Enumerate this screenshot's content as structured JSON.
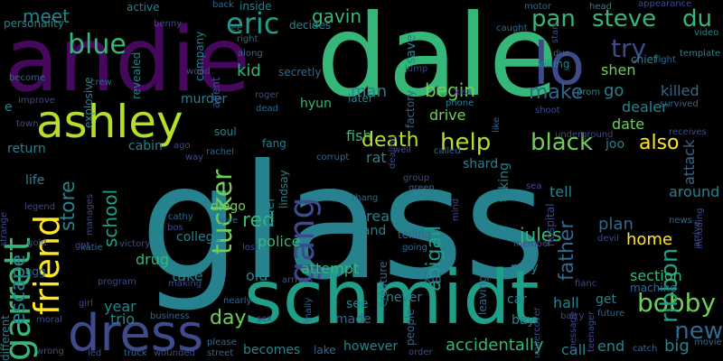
{
  "palette": {
    "purple": "#46085c",
    "indigo": "#3e4a89",
    "blue": "#31688e",
    "teal": "#26828e",
    "cyan": "#1f9e89",
    "green": "#35b779",
    "lime": "#6ece58",
    "yellow": "#b5de2b",
    "bright": "#fde725"
  },
  "words": [
    {
      "id": "glass",
      "text": "glass",
      "color": "teal"
    },
    {
      "id": "dale",
      "text": "dale",
      "color": "green"
    },
    {
      "id": "andie",
      "text": "andie",
      "color": "purple"
    },
    {
      "id": "schmidt",
      "text": "schmidt",
      "color": "cyan"
    },
    {
      "id": "ashley",
      "text": "ashley",
      "color": "yellow"
    },
    {
      "id": "dress",
      "text": "dress",
      "color": "indigo"
    },
    {
      "id": "garrett",
      "text": "garrett",
      "color": "green"
    },
    {
      "id": "friend",
      "text": "friend",
      "color": "bright"
    },
    {
      "id": "lo",
      "text": "lo",
      "color": "indigo"
    },
    {
      "id": "gang",
      "text": "gang",
      "color": "indigo"
    },
    {
      "id": "tucker",
      "text": "tucker",
      "color": "lime"
    },
    {
      "id": "eric",
      "text": "eric",
      "color": "cyan"
    },
    {
      "id": "blue",
      "text": "blue",
      "color": "green"
    },
    {
      "id": "death",
      "text": "death",
      "color": "yellow"
    },
    {
      "id": "help",
      "text": "help",
      "color": "yellow"
    },
    {
      "id": "black",
      "text": "black",
      "color": "lime"
    },
    {
      "id": "bobby",
      "text": "bobby",
      "color": "lime"
    },
    {
      "id": "steve",
      "text": "steve",
      "color": "green"
    },
    {
      "id": "du",
      "text": "du",
      "color": "green"
    },
    {
      "id": "ribbon",
      "text": "ribbon",
      "color": "cyan"
    },
    {
      "id": "try",
      "text": "try",
      "color": "indigo"
    },
    {
      "id": "pan",
      "text": "pan",
      "color": "green"
    },
    {
      "id": "make",
      "text": "make",
      "color": "blue"
    },
    {
      "id": "also",
      "text": "also",
      "color": "bright"
    },
    {
      "id": "new",
      "text": "new",
      "color": "blue"
    },
    {
      "id": "abigail",
      "text": "abigail",
      "color": "cyan"
    },
    {
      "id": "father",
      "text": "father",
      "color": "blue"
    },
    {
      "id": "escape",
      "text": "escape",
      "color": "teal"
    },
    {
      "id": "store",
      "text": "store",
      "color": "teal"
    },
    {
      "id": "school",
      "text": "school",
      "color": "cyan"
    },
    {
      "id": "day",
      "text": "day",
      "color": "lime"
    },
    {
      "id": "red",
      "text": "red",
      "color": "green"
    },
    {
      "id": "police",
      "text": "police",
      "color": "green"
    },
    {
      "id": "gavin",
      "text": "gavin",
      "color": "green"
    },
    {
      "id": "meet",
      "text": "meet",
      "color": "teal"
    },
    {
      "id": "begin",
      "text": "begin",
      "color": "lime"
    },
    {
      "id": "jules",
      "text": "jules",
      "color": "green"
    },
    {
      "id": "home",
      "text": "home",
      "color": "bright"
    },
    {
      "id": "accidentally",
      "text": "accidentally",
      "color": "green"
    },
    {
      "id": "section",
      "text": "section",
      "color": "green"
    },
    {
      "id": "kid",
      "text": "kid",
      "color": "green"
    },
    {
      "id": "drug",
      "text": "drug",
      "color": "green"
    },
    {
      "id": "attempt",
      "text": "attempt",
      "color": "green"
    },
    {
      "id": "killed",
      "text": "killed",
      "color": "blue"
    },
    {
      "id": "attack",
      "text": "attack",
      "color": "blue"
    },
    {
      "id": "plan",
      "text": "plan",
      "color": "blue"
    },
    {
      "id": "man",
      "text": "man",
      "color": "teal"
    },
    {
      "id": "drive",
      "text": "drive",
      "color": "lime"
    },
    {
      "id": "fish",
      "text": "fish",
      "color": "green"
    },
    {
      "id": "hyun",
      "text": "hyun",
      "color": "green"
    },
    {
      "id": "shen",
      "text": "shen",
      "color": "lime"
    },
    {
      "id": "go",
      "text": "go",
      "color": "teal"
    },
    {
      "id": "dealer",
      "text": "dealer",
      "color": "teal"
    },
    {
      "id": "date",
      "text": "date",
      "color": "lime"
    },
    {
      "id": "around",
      "text": "around",
      "color": "teal"
    },
    {
      "id": "big",
      "text": "big",
      "color": "teal"
    },
    {
      "id": "end",
      "text": "end",
      "color": "teal"
    },
    {
      "id": "call",
      "text": "call",
      "color": "teal"
    },
    {
      "id": "hall",
      "text": "hall",
      "color": "teal"
    },
    {
      "id": "get",
      "text": "get",
      "color": "teal"
    },
    {
      "id": "may",
      "text": "may",
      "color": "teal"
    },
    {
      "id": "tell",
      "text": "tell",
      "color": "teal"
    },
    {
      "id": "break",
      "text": "break",
      "color": "teal"
    },
    {
      "id": "hand",
      "text": "hand",
      "color": "teal"
    },
    {
      "id": "shard",
      "text": "shard",
      "color": "teal"
    },
    {
      "id": "rat",
      "text": "rat",
      "color": "teal"
    },
    {
      "id": "joo",
      "text": "joo",
      "color": "teal"
    },
    {
      "id": "taking",
      "text": "taking",
      "color": "teal"
    },
    {
      "id": "killer",
      "text": "killer",
      "color": "teal"
    },
    {
      "id": "diego",
      "text": "diego",
      "color": "lime"
    },
    {
      "id": "old",
      "text": "old",
      "color": "teal"
    },
    {
      "id": "take",
      "text": "take",
      "color": "teal"
    },
    {
      "id": "year",
      "text": "year",
      "color": "teal"
    },
    {
      "id": "trio",
      "text": "trio",
      "color": "teal"
    },
    {
      "id": "college",
      "text": "college",
      "color": "teal"
    },
    {
      "id": "cabin",
      "text": "cabin",
      "color": "teal"
    },
    {
      "id": "return",
      "text": "return",
      "color": "teal"
    },
    {
      "id": "life",
      "text": "life",
      "color": "teal"
    },
    {
      "id": "murder",
      "text": "murder",
      "color": "teal"
    },
    {
      "id": "company",
      "text": "company",
      "color": "teal"
    },
    {
      "id": "revealed",
      "text": "revealed",
      "color": "teal"
    },
    {
      "id": "explosive",
      "text": "explosive",
      "color": "teal"
    },
    {
      "id": "personality",
      "text": "personality",
      "color": "teal"
    },
    {
      "id": "active",
      "text": "active",
      "color": "teal"
    },
    {
      "id": "inside",
      "text": "inside",
      "color": "teal"
    },
    {
      "id": "decides",
      "text": "decides",
      "color": "teal"
    },
    {
      "id": "save",
      "text": "save",
      "color": "teal"
    },
    {
      "id": "killing",
      "text": "killing",
      "color": "teal"
    },
    {
      "id": "chief",
      "text": "chief",
      "color": "teal"
    },
    {
      "id": "secretly",
      "text": "secretly",
      "color": "blue"
    },
    {
      "id": "later",
      "text": "later",
      "color": "teal"
    },
    {
      "id": "factory",
      "text": "factory",
      "color": "blue"
    },
    {
      "id": "phone",
      "text": "phone",
      "color": "teal"
    },
    {
      "id": "agent",
      "text": "agent",
      "color": "indigo"
    },
    {
      "id": "soul",
      "text": "soul",
      "color": "teal"
    },
    {
      "id": "fang",
      "text": "fang",
      "color": "teal"
    },
    {
      "id": "lindsay",
      "text": "lindsay",
      "color": "teal"
    },
    {
      "id": "creature",
      "text": "creature",
      "color": "blue"
    },
    {
      "id": "leaving",
      "text": "leaving",
      "color": "blue"
    },
    {
      "id": "people",
      "text": "people",
      "color": "blue"
    },
    {
      "id": "never",
      "text": "never",
      "color": "teal"
    },
    {
      "id": "kill",
      "text": "kill",
      "color": "blue"
    },
    {
      "id": "see",
      "text": "see",
      "color": "teal"
    },
    {
      "id": "made",
      "text": "made",
      "color": "blue"
    },
    {
      "id": "becomes",
      "text": "becomes",
      "color": "teal"
    },
    {
      "id": "however",
      "text": "however",
      "color": "teal"
    },
    {
      "id": "lake",
      "text": "lake",
      "color": "blue"
    },
    {
      "id": "finally",
      "text": "finally",
      "color": "blue"
    },
    {
      "id": "bay",
      "text": "bay",
      "color": "teal"
    },
    {
      "id": "car",
      "text": "car",
      "color": "teal"
    },
    {
      "id": "machine",
      "text": "machine",
      "color": "blue"
    },
    {
      "id": "future",
      "text": "future",
      "color": "blue"
    },
    {
      "id": "different",
      "text": "different",
      "color": "teal"
    },
    {
      "id": "appearance",
      "text": "appearance",
      "color": "indigo"
    },
    {
      "id": "video",
      "text": "video",
      "color": "teal"
    },
    {
      "id": "template",
      "text": "template",
      "color": "teal"
    },
    {
      "id": "fight",
      "text": "fight",
      "color": "blue"
    },
    {
      "id": "survived",
      "text": "survived",
      "color": "blue"
    },
    {
      "id": "prom",
      "text": "prom",
      "color": "teal"
    },
    {
      "id": "head",
      "text": "head",
      "color": "teal"
    },
    {
      "id": "motor",
      "text": "motor",
      "color": "blue"
    },
    {
      "id": "caught",
      "text": "caught",
      "color": "blue"
    },
    {
      "id": "due",
      "text": "due",
      "color": "blue"
    },
    {
      "id": "back",
      "text": "back",
      "color": "blue"
    },
    {
      "id": "right",
      "text": "right",
      "color": "blue"
    },
    {
      "id": "along",
      "text": "along",
      "color": "blue"
    },
    {
      "id": "lee",
      "text": "lee",
      "color": "blue"
    },
    {
      "id": "crew",
      "text": "crew",
      "color": "blue"
    },
    {
      "id": "become",
      "text": "become",
      "color": "blue"
    },
    {
      "id": "improve",
      "text": "improve",
      "color": "indigo"
    },
    {
      "id": "town",
      "text": "town",
      "color": "indigo"
    },
    {
      "id": "roger",
      "text": "roger",
      "color": "indigo"
    },
    {
      "id": "dead",
      "text": "dead",
      "color": "blue"
    },
    {
      "id": "corrupt",
      "text": "corrupt",
      "color": "blue"
    },
    {
      "id": "kiss",
      "text": "kiss",
      "color": "indigo"
    },
    {
      "id": "shoot",
      "text": "shoot",
      "color": "indigo"
    },
    {
      "id": "underground",
      "text": "underground",
      "color": "indigo"
    },
    {
      "id": "receives",
      "text": "receives",
      "color": "indigo"
    },
    {
      "id": "news",
      "text": "news",
      "color": "blue"
    },
    {
      "id": "arrive",
      "text": "arrive",
      "color": "indigo"
    },
    {
      "id": "movie",
      "text": "movie",
      "color": "blue"
    },
    {
      "id": "catch",
      "text": "catch",
      "color": "blue"
    },
    {
      "id": "message",
      "text": "message",
      "color": "indigo"
    },
    {
      "id": "teenager",
      "text": "teenager",
      "color": "indigo"
    },
    {
      "id": "barry",
      "text": "barry",
      "color": "indigo"
    },
    {
      "id": "undercover",
      "text": "undercover",
      "color": "indigo"
    },
    {
      "id": "member",
      "text": "member",
      "color": "indigo"
    },
    {
      "id": "hospital",
      "text": "hospital",
      "color": "indigo"
    },
    {
      "id": "devil",
      "text": "devil",
      "color": "indigo"
    },
    {
      "id": "mind",
      "text": "mind",
      "color": "indigo"
    },
    {
      "id": "telling",
      "text": "telling",
      "color": "blue"
    },
    {
      "id": "going",
      "text": "going",
      "color": "blue"
    },
    {
      "id": "green",
      "text": "green",
      "color": "blue"
    },
    {
      "id": "group",
      "text": "group",
      "color": "indigo"
    },
    {
      "id": "zhang",
      "text": "zhang",
      "color": "blue"
    },
    {
      "id": "well",
      "text": "well",
      "color": "indigo"
    },
    {
      "id": "called",
      "text": "called",
      "color": "blue"
    },
    {
      "id": "dealing",
      "text": "dealing",
      "color": "indigo"
    },
    {
      "id": "rachel",
      "text": "rachel",
      "color": "blue"
    },
    {
      "id": "way",
      "text": "way",
      "color": "indigo"
    },
    {
      "id": "cathy",
      "text": "cathy",
      "color": "blue"
    },
    {
      "id": "bos",
      "text": "bos",
      "color": "indigo"
    },
    {
      "id": "give",
      "text": "give",
      "color": "blue"
    },
    {
      "id": "lost",
      "text": "lost",
      "color": "indigo"
    },
    {
      "id": "making",
      "text": "making",
      "color": "indigo"
    },
    {
      "id": "arrives",
      "text": "arrives",
      "color": "indigo"
    },
    {
      "id": "nearly",
      "text": "nearly",
      "color": "blue"
    },
    {
      "id": "sex",
      "text": "sex",
      "color": "indigo"
    },
    {
      "id": "please",
      "text": "please",
      "color": "blue"
    },
    {
      "id": "street",
      "text": "street",
      "color": "blue"
    },
    {
      "id": "truck",
      "text": "truck",
      "color": "blue"
    },
    {
      "id": "wounded",
      "text": "wounded",
      "color": "indigo"
    },
    {
      "id": "business",
      "text": "business",
      "color": "blue"
    },
    {
      "id": "program",
      "text": "program",
      "color": "indigo"
    },
    {
      "id": "victory",
      "text": "victory",
      "color": "indigo"
    },
    {
      "id": "katie",
      "text": "katie",
      "color": "blue"
    },
    {
      "id": "girl",
      "text": "girl",
      "color": "indigo"
    },
    {
      "id": "led",
      "text": "led",
      "color": "indigo"
    },
    {
      "id": "moral",
      "text": "moral",
      "color": "indigo"
    },
    {
      "id": "wrong",
      "text": "wrong",
      "color": "indigo"
    },
    {
      "id": "egg",
      "text": "egg",
      "color": "blue"
    },
    {
      "id": "gold",
      "text": "gold",
      "color": "indigo"
    },
    {
      "id": "strange",
      "text": "strange",
      "color": "indigo"
    },
    {
      "id": "legend",
      "text": "legend",
      "color": "indigo"
    },
    {
      "id": "manages",
      "text": "manages",
      "color": "indigo"
    },
    {
      "id": "wood",
      "text": "wood",
      "color": "indigo"
    },
    {
      "id": "benny",
      "text": "benny",
      "color": "indigo"
    },
    {
      "id": "got",
      "text": "got",
      "color": "indigo"
    },
    {
      "id": "ago",
      "text": "ago",
      "color": "indigo"
    },
    {
      "id": "order",
      "text": "order",
      "color": "indigo"
    },
    {
      "id": "fianc",
      "text": "fianc",
      "color": "indigo"
    },
    {
      "id": "sea",
      "text": "sea",
      "color": "indigo"
    },
    {
      "id": "jump",
      "text": "jump",
      "color": "indigo"
    },
    {
      "id": "start",
      "text": "start",
      "color": "indigo"
    },
    {
      "id": "like",
      "text": "like",
      "color": "blue"
    },
    {
      "id": "including",
      "text": "including",
      "color": "indigo"
    },
    {
      "id": "e",
      "text": "e",
      "color": "teal"
    }
  ]
}
